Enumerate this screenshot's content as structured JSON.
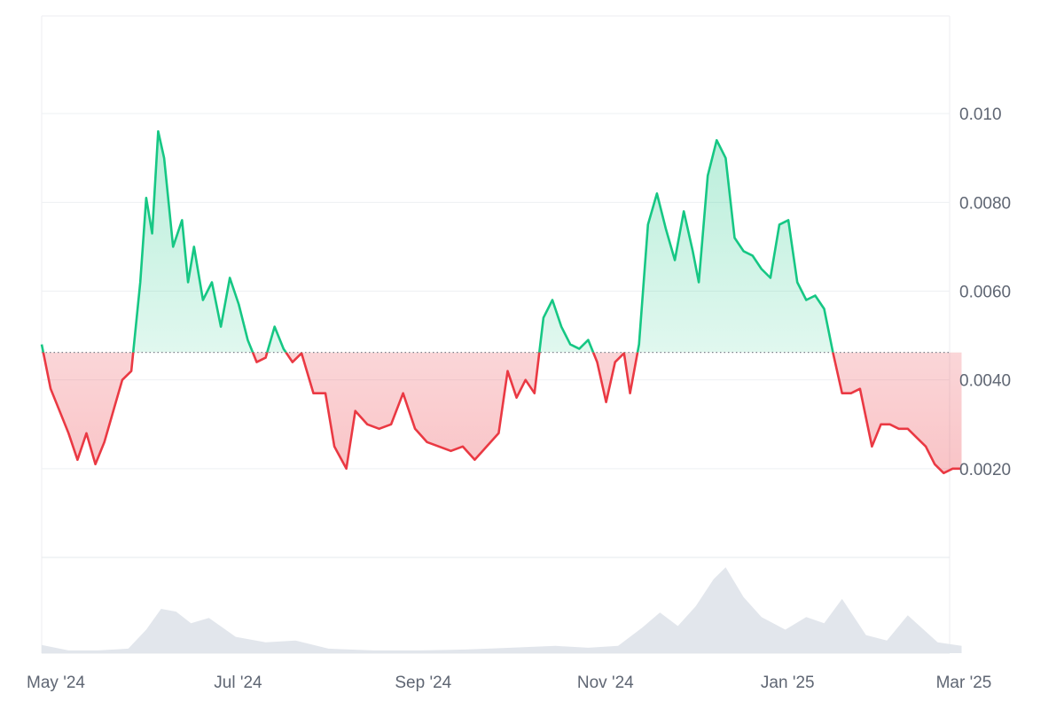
{
  "chart_data": {
    "type": "area",
    "baseline": 0.00462,
    "ylim": [
      0,
      0.0122
    ],
    "grid": true,
    "colors": {
      "up": "#16c784",
      "down": "#ea3943",
      "volume": "#dfe3ea"
    },
    "y_ticks": [
      {
        "value": 0.01,
        "label": "0.010"
      },
      {
        "value": 0.008,
        "label": "0.0080"
      },
      {
        "value": 0.006,
        "label": "0.0060"
      },
      {
        "value": 0.004,
        "label": "0.0040"
      },
      {
        "value": 0.002,
        "label": "0.0020"
      }
    ],
    "x_ticks": [
      {
        "date": "2024-05-01",
        "label": "May '24"
      },
      {
        "date": "2024-07-01",
        "label": "Jul '24"
      },
      {
        "date": "2024-09-01",
        "label": "Sep '24"
      },
      {
        "date": "2024-11-01",
        "label": "Nov '24"
      },
      {
        "date": "2025-01-01",
        "label": "Jan '25"
      },
      {
        "date": "2025-03-01",
        "label": "Mar '25"
      }
    ],
    "series": [
      {
        "x": [
          "2024-05-01",
          "2024-05-04",
          "2024-05-07",
          "2024-05-10",
          "2024-05-13",
          "2024-05-16",
          "2024-05-19",
          "2024-05-22",
          "2024-05-25",
          "2024-05-28",
          "2024-05-31",
          "2024-06-03",
          "2024-06-05",
          "2024-06-07",
          "2024-06-09",
          "2024-06-11",
          "2024-06-14",
          "2024-06-17",
          "2024-06-19",
          "2024-06-21",
          "2024-06-24",
          "2024-06-27",
          "2024-06-30",
          "2024-07-03",
          "2024-07-06",
          "2024-07-09",
          "2024-07-12",
          "2024-07-15",
          "2024-07-18",
          "2024-07-21",
          "2024-07-24",
          "2024-07-27",
          "2024-07-31",
          "2024-08-04",
          "2024-08-07",
          "2024-08-11",
          "2024-08-14",
          "2024-08-18",
          "2024-08-22",
          "2024-08-26",
          "2024-08-30",
          "2024-09-03",
          "2024-09-07",
          "2024-09-11",
          "2024-09-15",
          "2024-09-19",
          "2024-09-23",
          "2024-09-27",
          "2024-10-01",
          "2024-10-04",
          "2024-10-07",
          "2024-10-10",
          "2024-10-13",
          "2024-10-16",
          "2024-10-19",
          "2024-10-22",
          "2024-10-25",
          "2024-10-28",
          "2024-10-31",
          "2024-11-03",
          "2024-11-06",
          "2024-11-09",
          "2024-11-12",
          "2024-11-14",
          "2024-11-17",
          "2024-11-20",
          "2024-11-23",
          "2024-11-26",
          "2024-11-29",
          "2024-12-02",
          "2024-12-05",
          "2024-12-07",
          "2024-12-10",
          "2024-12-13",
          "2024-12-16",
          "2024-12-19",
          "2024-12-22",
          "2024-12-25",
          "2024-12-28",
          "2024-12-31",
          "2025-01-03",
          "2025-01-06",
          "2025-01-09",
          "2025-01-12",
          "2025-01-15",
          "2025-01-18",
          "2025-01-21",
          "2025-01-24",
          "2025-01-27",
          "2025-01-30",
          "2025-02-03",
          "2025-02-06",
          "2025-02-09",
          "2025-02-12",
          "2025-02-15",
          "2025-02-18",
          "2025-02-21",
          "2025-02-24",
          "2025-02-27",
          "2025-03-02",
          "2025-03-05"
        ],
        "values": [
          0.0048,
          0.0038,
          0.0033,
          0.0028,
          0.0022,
          0.0028,
          0.0021,
          0.0026,
          0.0033,
          0.004,
          0.0042,
          0.0062,
          0.0081,
          0.0073,
          0.0096,
          0.009,
          0.007,
          0.0076,
          0.0062,
          0.007,
          0.0058,
          0.0062,
          0.0052,
          0.0063,
          0.0057,
          0.0049,
          0.0044,
          0.0045,
          0.0052,
          0.0047,
          0.0044,
          0.0046,
          0.0037,
          0.0037,
          0.0025,
          0.002,
          0.0033,
          0.003,
          0.0029,
          0.003,
          0.0037,
          0.0029,
          0.0026,
          0.0025,
          0.0024,
          0.0025,
          0.0022,
          0.0025,
          0.0028,
          0.0042,
          0.0036,
          0.004,
          0.0037,
          0.0054,
          0.0058,
          0.0052,
          0.0048,
          0.0047,
          0.0049,
          0.0044,
          0.0035,
          0.0044,
          0.0046,
          0.0037,
          0.0048,
          0.0075,
          0.0082,
          0.0074,
          0.0067,
          0.0078,
          0.0069,
          0.0062,
          0.0086,
          0.0094,
          0.009,
          0.0072,
          0.0069,
          0.0068,
          0.0065,
          0.0063,
          0.0075,
          0.0076,
          0.0062,
          0.0058,
          0.0059,
          0.0056,
          0.0046,
          0.0037,
          0.0037,
          0.0038,
          0.0025,
          0.003,
          0.003,
          0.0029,
          0.0029,
          0.0027,
          0.0025,
          0.0021,
          0.0019,
          0.002,
          0.002
        ]
      }
    ],
    "volume": {
      "x": [
        "2024-05-01",
        "2024-05-10",
        "2024-05-20",
        "2024-05-30",
        "2024-06-05",
        "2024-06-10",
        "2024-06-15",
        "2024-06-20",
        "2024-06-26",
        "2024-07-05",
        "2024-07-15",
        "2024-07-25",
        "2024-08-05",
        "2024-08-20",
        "2024-09-05",
        "2024-09-20",
        "2024-10-05",
        "2024-10-20",
        "2024-10-31",
        "2024-11-10",
        "2024-11-18",
        "2024-11-24",
        "2024-11-30",
        "2024-12-06",
        "2024-12-12",
        "2024-12-16",
        "2024-12-22",
        "2024-12-28",
        "2025-01-05",
        "2025-01-12",
        "2025-01-18",
        "2025-01-24",
        "2025-02-01",
        "2025-02-08",
        "2025-02-15",
        "2025-02-25",
        "2025-03-05"
      ],
      "values": [
        0.09,
        0.03,
        0.03,
        0.05,
        0.26,
        0.49,
        0.46,
        0.33,
        0.39,
        0.18,
        0.12,
        0.14,
        0.05,
        0.03,
        0.03,
        0.04,
        0.06,
        0.08,
        0.06,
        0.08,
        0.28,
        0.45,
        0.3,
        0.52,
        0.82,
        0.95,
        0.62,
        0.4,
        0.26,
        0.4,
        0.33,
        0.6,
        0.2,
        0.14,
        0.42,
        0.12,
        0.08
      ]
    }
  }
}
